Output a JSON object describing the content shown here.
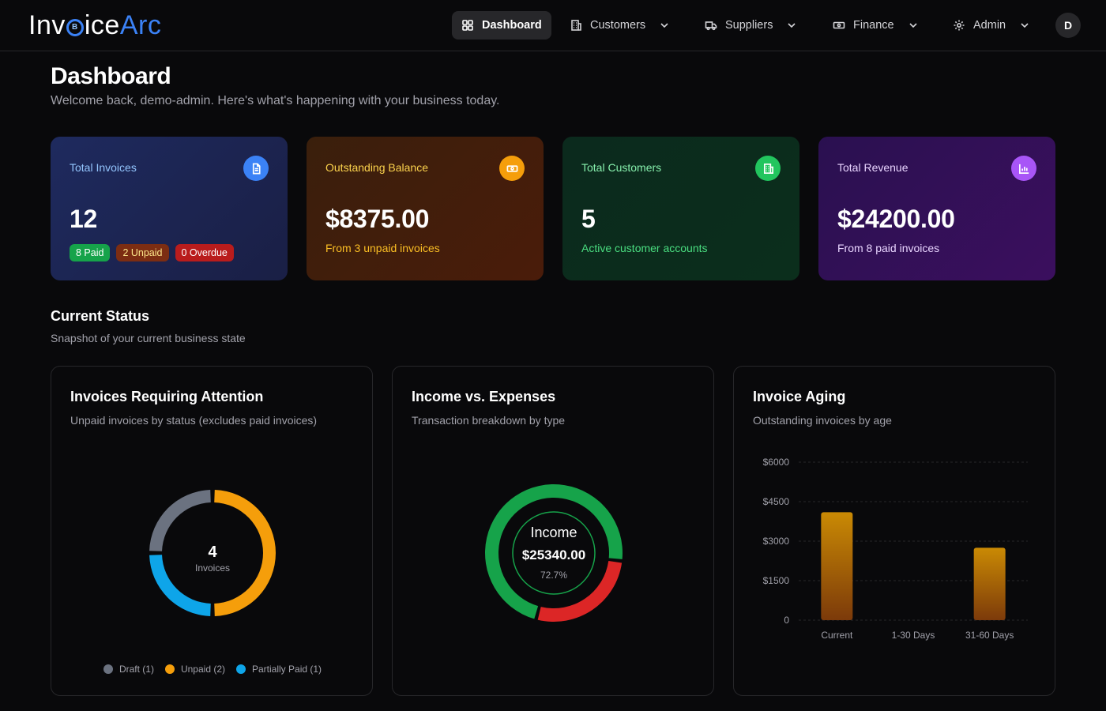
{
  "app": {
    "logo_left": "Inv",
    "logo_mid": "ice",
    "logo_right": "Arc"
  },
  "nav": {
    "items": [
      {
        "label": "Dashboard",
        "icon": "grid-icon",
        "active": true
      },
      {
        "label": "Customers",
        "icon": "building-icon"
      },
      {
        "label": "Suppliers",
        "icon": "truck-icon"
      },
      {
        "label": "Finance",
        "icon": "banknote-icon"
      },
      {
        "label": "Admin",
        "icon": "gear-icon"
      }
    ],
    "avatar": "D"
  },
  "header": {
    "title": "Dashboard",
    "subtitle": "Welcome back, demo-admin. Here's what's happening with your business today."
  },
  "stats": {
    "invoices": {
      "label": "Total Invoices",
      "value": "12",
      "paid": "8 Paid",
      "unpaid": "2 Unpaid",
      "overdue": "0 Overdue",
      "icon": "file-text-icon"
    },
    "outstanding": {
      "label": "Outstanding Balance",
      "value": "$8375.00",
      "sub": "From 3 unpaid invoices",
      "icon": "banknote-icon"
    },
    "customers": {
      "label": "Total Customers",
      "value": "5",
      "sub": "Active customer accounts",
      "icon": "building-icon"
    },
    "revenue": {
      "label": "Total Revenue",
      "value": "$24200.00",
      "sub": "From 8 paid invoices",
      "icon": "bar-chart-icon"
    }
  },
  "section": {
    "title": "Current Status",
    "subtitle": "Snapshot of your current business state"
  },
  "panels": {
    "attention": {
      "title": "Invoices Requiring Attention",
      "subtitle": "Unpaid invoices by status (excludes paid invoices)",
      "center_value": "4",
      "center_label": "Invoices"
    },
    "income": {
      "title": "Income vs. Expenses",
      "subtitle": "Transaction breakdown by type",
      "center_label": "Income",
      "center_value": "$25340.00",
      "center_pct": "72.7%"
    },
    "aging": {
      "title": "Invoice Aging",
      "subtitle": "Outstanding invoices by age"
    }
  },
  "chart_data": [
    {
      "type": "pie",
      "categories": [
        "Draft",
        "Unpaid",
        "Partially Paid"
      ],
      "values": [
        1,
        2,
        1
      ],
      "legend_labels": [
        "Draft (1)",
        "Unpaid (2)",
        "Partially Paid (1)"
      ],
      "colors": [
        "#6b7280",
        "#f59e0b",
        "#0ea5e9"
      ],
      "legend": "bottom"
    },
    {
      "type": "pie",
      "categories": [
        "Income",
        "Expenses"
      ],
      "values": [
        72.7,
        27.3
      ],
      "colors": [
        "#16a34a",
        "#dc2626"
      ]
    },
    {
      "type": "bar",
      "categories": [
        "Current",
        "1-30 Days",
        "31-60 Days"
      ],
      "values": [
        4100,
        0,
        2750
      ],
      "tick_labels": [
        "0",
        "$1500",
        "$3000",
        "$4500",
        "$6000"
      ],
      "ticks": [
        0,
        1500,
        3000,
        4500,
        6000
      ],
      "ylim": [
        0,
        6000
      ],
      "color": "#b45309",
      "grid": true
    }
  ]
}
